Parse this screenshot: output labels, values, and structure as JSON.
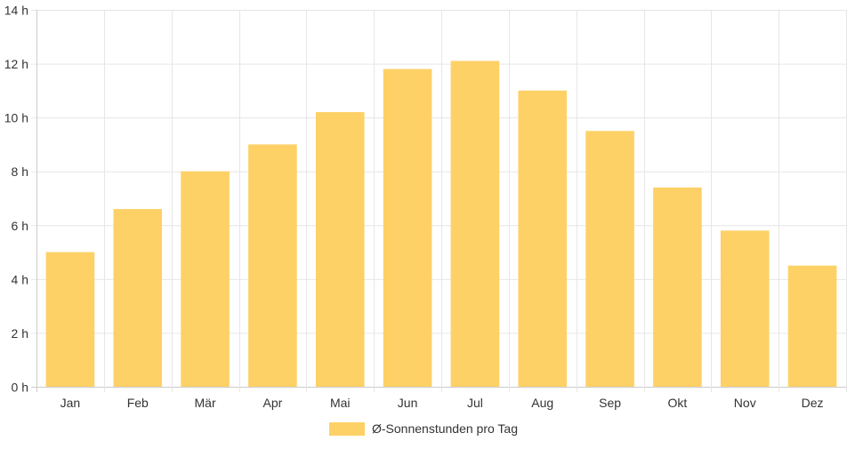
{
  "chart_data": {
    "type": "bar",
    "categories": [
      "Jan",
      "Feb",
      "Mär",
      "Apr",
      "Mai",
      "Jun",
      "Jul",
      "Aug",
      "Sep",
      "Okt",
      "Nov",
      "Dez"
    ],
    "series": [
      {
        "name": "Ø-Sonnenstunden pro Tag",
        "values": [
          5.0,
          6.6,
          8.0,
          9.0,
          10.2,
          11.8,
          12.1,
          11.0,
          9.5,
          7.4,
          5.8,
          4.5
        ],
        "color": "#fdd166"
      }
    ],
    "y_ticks": [
      "0 h",
      "2 h",
      "4 h",
      "6 h",
      "8 h",
      "10 h",
      "12 h",
      "14 h"
    ],
    "ylim": [
      0,
      14
    ],
    "y_unit": "h",
    "grid": true,
    "legend_position": "bottom",
    "grid_color": "#e6e6e6",
    "axis_color": "#cccccc"
  }
}
